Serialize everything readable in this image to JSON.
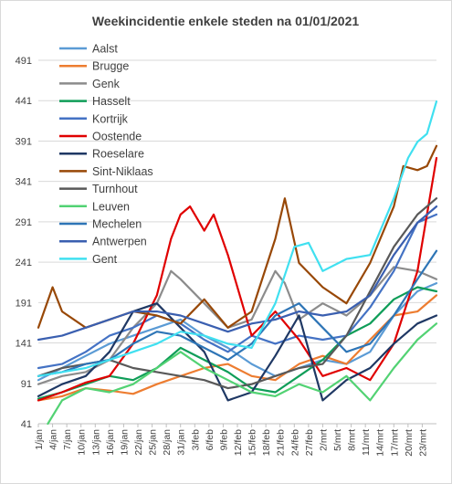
{
  "chart_data": {
    "type": "line",
    "title": "Weekincidentie  enkele steden na 01/01/2021",
    "xlabel": "",
    "ylabel": "",
    "ylim": [
      41,
      491
    ],
    "yticks": [
      41,
      91,
      141,
      191,
      241,
      291,
      341,
      391,
      441,
      491
    ],
    "xticks": [
      "1/jan",
      "4/jan",
      "7/jan",
      "10/jan",
      "13/jan",
      "16/jan",
      "19/jan",
      "22/jan",
      "25/jan",
      "28/jan",
      "31/jan",
      "3/feb",
      "6/feb",
      "9/feb",
      "12/feb",
      "15/feb",
      "18/feb",
      "21/feb",
      "24/feb",
      "27/feb",
      "2/mrt",
      "5/mrt",
      "8/mrt",
      "11/mrt",
      "14/mrt",
      "17/mrt",
      "20/mrt",
      "23/mrt"
    ],
    "x_day_range": [
      1,
      85
    ],
    "grid": "horizontal",
    "legend_position": "top-left",
    "series": [
      {
        "name": "Aalst",
        "color": "#5b9bd5",
        "points": [
          [
            1,
            95
          ],
          [
            6,
            110
          ],
          [
            11,
            125
          ],
          [
            16,
            140
          ],
          [
            21,
            150
          ],
          [
            26,
            160
          ],
          [
            31,
            170
          ],
          [
            36,
            150
          ],
          [
            41,
            135
          ],
          [
            46,
            115
          ],
          [
            51,
            100
          ],
          [
            56,
            110
          ],
          [
            61,
            120
          ],
          [
            66,
            115
          ],
          [
            71,
            130
          ],
          [
            76,
            175
          ],
          [
            81,
            205
          ],
          [
            85,
            215
          ]
        ]
      },
      {
        "name": "Brugge",
        "color": "#ed7d31",
        "points": [
          [
            1,
            70
          ],
          [
            6,
            75
          ],
          [
            11,
            85
          ],
          [
            16,
            82
          ],
          [
            21,
            78
          ],
          [
            26,
            90
          ],
          [
            31,
            100
          ],
          [
            36,
            110
          ],
          [
            41,
            115
          ],
          [
            46,
            100
          ],
          [
            51,
            95
          ],
          [
            56,
            115
          ],
          [
            61,
            125
          ],
          [
            66,
            115
          ],
          [
            71,
            145
          ],
          [
            76,
            175
          ],
          [
            81,
            180
          ],
          [
            85,
            200
          ]
        ]
      },
      {
        "name": "Genk",
        "color": "#8c8c8c",
        "points": [
          [
            1,
            90
          ],
          [
            6,
            100
          ],
          [
            11,
            105
          ],
          [
            16,
            120
          ],
          [
            21,
            160
          ],
          [
            26,
            190
          ],
          [
            29,
            230
          ],
          [
            31,
            220
          ],
          [
            36,
            190
          ],
          [
            41,
            160
          ],
          [
            46,
            170
          ],
          [
            51,
            230
          ],
          [
            53,
            215
          ],
          [
            56,
            170
          ],
          [
            61,
            190
          ],
          [
            66,
            175
          ],
          [
            71,
            200
          ],
          [
            76,
            235
          ],
          [
            81,
            230
          ],
          [
            85,
            220
          ]
        ]
      },
      {
        "name": "Hasselt",
        "color": "#0f9d58",
        "points": [
          [
            1,
            72
          ],
          [
            6,
            80
          ],
          [
            11,
            90
          ],
          [
            16,
            100
          ],
          [
            21,
            95
          ],
          [
            26,
            110
          ],
          [
            31,
            135
          ],
          [
            36,
            120
          ],
          [
            41,
            105
          ],
          [
            46,
            85
          ],
          [
            51,
            80
          ],
          [
            56,
            100
          ],
          [
            61,
            120
          ],
          [
            66,
            150
          ],
          [
            71,
            165
          ],
          [
            76,
            195
          ],
          [
            81,
            210
          ],
          [
            85,
            205
          ]
        ]
      },
      {
        "name": "Kortrijk",
        "color": "#4472c4",
        "points": [
          [
            1,
            110
          ],
          [
            6,
            115
          ],
          [
            11,
            130
          ],
          [
            16,
            150
          ],
          [
            21,
            160
          ],
          [
            26,
            175
          ],
          [
            31,
            165
          ],
          [
            36,
            145
          ],
          [
            41,
            130
          ],
          [
            46,
            150
          ],
          [
            51,
            140
          ],
          [
            56,
            150
          ],
          [
            61,
            145
          ],
          [
            66,
            150
          ],
          [
            71,
            185
          ],
          [
            76,
            230
          ],
          [
            81,
            290
          ],
          [
            85,
            300
          ]
        ]
      },
      {
        "name": "Oostende",
        "color": "#e00000",
        "points": [
          [
            1,
            70
          ],
          [
            6,
            80
          ],
          [
            11,
            92
          ],
          [
            16,
            100
          ],
          [
            21,
            140
          ],
          [
            26,
            200
          ],
          [
            29,
            270
          ],
          [
            31,
            300
          ],
          [
            33,
            310
          ],
          [
            36,
            280
          ],
          [
            38,
            300
          ],
          [
            41,
            250
          ],
          [
            46,
            150
          ],
          [
            51,
            180
          ],
          [
            56,
            145
          ],
          [
            61,
            100
          ],
          [
            66,
            110
          ],
          [
            71,
            95
          ],
          [
            76,
            140
          ],
          [
            81,
            230
          ],
          [
            83,
            300
          ],
          [
            85,
            370
          ]
        ]
      },
      {
        "name": "Roeselare",
        "color": "#1f3864",
        "points": [
          [
            1,
            75
          ],
          [
            6,
            90
          ],
          [
            11,
            100
          ],
          [
            16,
            130
          ],
          [
            21,
            180
          ],
          [
            26,
            190
          ],
          [
            31,
            160
          ],
          [
            36,
            130
          ],
          [
            41,
            70
          ],
          [
            46,
            80
          ],
          [
            51,
            125
          ],
          [
            56,
            175
          ],
          [
            61,
            70
          ],
          [
            66,
            95
          ],
          [
            71,
            110
          ],
          [
            76,
            140
          ],
          [
            81,
            165
          ],
          [
            85,
            175
          ]
        ]
      },
      {
        "name": "Sint-Niklaas",
        "color": "#984807",
        "points": [
          [
            1,
            160
          ],
          [
            4,
            210
          ],
          [
            6,
            180
          ],
          [
            11,
            160
          ],
          [
            16,
            170
          ],
          [
            21,
            180
          ],
          [
            26,
            175
          ],
          [
            31,
            165
          ],
          [
            36,
            195
          ],
          [
            41,
            160
          ],
          [
            46,
            180
          ],
          [
            51,
            270
          ],
          [
            53,
            320
          ],
          [
            56,
            240
          ],
          [
            61,
            210
          ],
          [
            66,
            190
          ],
          [
            71,
            240
          ],
          [
            76,
            310
          ],
          [
            78,
            360
          ],
          [
            81,
            355
          ],
          [
            83,
            360
          ],
          [
            85,
            385
          ]
        ]
      },
      {
        "name": "Turnhout",
        "color": "#595959",
        "points": [
          [
            1,
            100
          ],
          [
            6,
            110
          ],
          [
            11,
            115
          ],
          [
            16,
            120
          ],
          [
            21,
            110
          ],
          [
            26,
            105
          ],
          [
            31,
            100
          ],
          [
            36,
            95
          ],
          [
            41,
            85
          ],
          [
            46,
            90
          ],
          [
            51,
            100
          ],
          [
            56,
            110
          ],
          [
            61,
            115
          ],
          [
            66,
            150
          ],
          [
            71,
            205
          ],
          [
            76,
            260
          ],
          [
            81,
            300
          ],
          [
            85,
            320
          ]
        ]
      },
      {
        "name": "Leuven",
        "color": "#52d273",
        "points": [
          [
            3,
            41
          ],
          [
            6,
            70
          ],
          [
            11,
            85
          ],
          [
            16,
            80
          ],
          [
            21,
            90
          ],
          [
            26,
            110
          ],
          [
            31,
            130
          ],
          [
            36,
            110
          ],
          [
            41,
            95
          ],
          [
            46,
            80
          ],
          [
            51,
            75
          ],
          [
            56,
            90
          ],
          [
            61,
            80
          ],
          [
            66,
            100
          ],
          [
            71,
            70
          ],
          [
            76,
            110
          ],
          [
            81,
            145
          ],
          [
            85,
            165
          ]
        ]
      },
      {
        "name": "Mechelen",
        "color": "#2e75b6",
        "points": [
          [
            1,
            100
          ],
          [
            6,
            105
          ],
          [
            11,
            115
          ],
          [
            16,
            120
          ],
          [
            21,
            140
          ],
          [
            26,
            155
          ],
          [
            31,
            150
          ],
          [
            36,
            135
          ],
          [
            41,
            120
          ],
          [
            46,
            140
          ],
          [
            51,
            175
          ],
          [
            56,
            190
          ],
          [
            61,
            160
          ],
          [
            66,
            130
          ],
          [
            71,
            140
          ],
          [
            76,
            175
          ],
          [
            81,
            220
          ],
          [
            85,
            255
          ]
        ]
      },
      {
        "name": "Antwerpen",
        "color": "#3a5fb0",
        "points": [
          [
            1,
            145
          ],
          [
            6,
            150
          ],
          [
            11,
            160
          ],
          [
            16,
            170
          ],
          [
            21,
            180
          ],
          [
            26,
            180
          ],
          [
            31,
            175
          ],
          [
            36,
            165
          ],
          [
            41,
            155
          ],
          [
            46,
            165
          ],
          [
            51,
            170
          ],
          [
            56,
            180
          ],
          [
            61,
            175
          ],
          [
            66,
            180
          ],
          [
            71,
            200
          ],
          [
            76,
            250
          ],
          [
            81,
            290
          ],
          [
            85,
            310
          ]
        ]
      },
      {
        "name": "Gent",
        "color": "#40e0f0",
        "points": [
          [
            1,
            100
          ],
          [
            6,
            105
          ],
          [
            11,
            110
          ],
          [
            16,
            120
          ],
          [
            21,
            130
          ],
          [
            26,
            140
          ],
          [
            31,
            155
          ],
          [
            36,
            150
          ],
          [
            41,
            140
          ],
          [
            46,
            135
          ],
          [
            51,
            190
          ],
          [
            55,
            260
          ],
          [
            58,
            265
          ],
          [
            61,
            230
          ],
          [
            66,
            245
          ],
          [
            71,
            250
          ],
          [
            76,
            320
          ],
          [
            79,
            370
          ],
          [
            81,
            390
          ],
          [
            83,
            400
          ],
          [
            85,
            440
          ]
        ]
      }
    ]
  }
}
